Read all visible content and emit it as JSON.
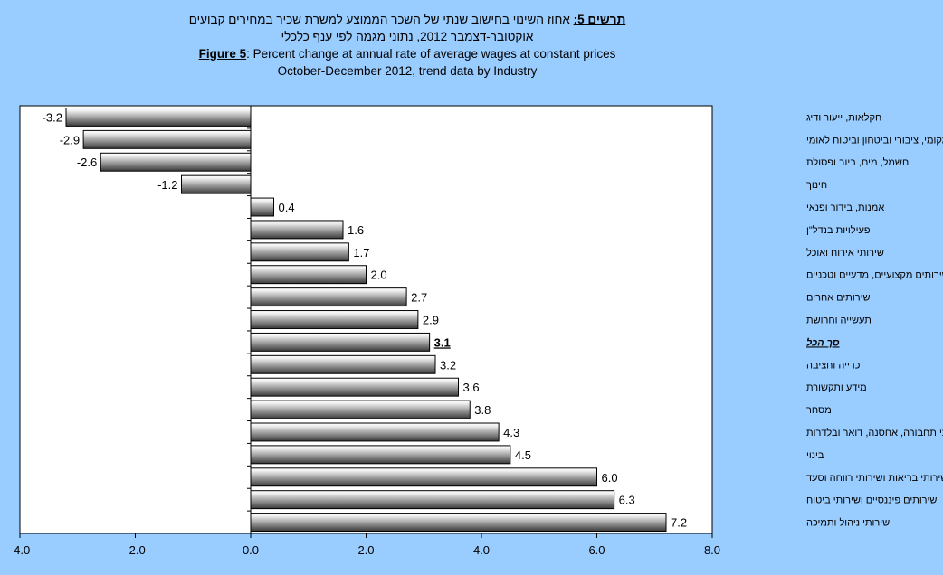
{
  "title": {
    "he_prefix": "תרשים 5:",
    "he_line1": " אחוז השינוי בחישוב שנתי של השכר הממוצע למשרת שכיר במחירים קבועים",
    "he_line2": "אוקטובר-דצמבר 2012, נתוני מגמה לפי ענף כלכלי",
    "en_prefix": "Figure 5",
    "en_line1": ": Percent change at annual rate of average wages at constant prices",
    "en_line2": "October-December 2012, trend data by Industry"
  },
  "chart_data": {
    "type": "bar",
    "orientation": "horizontal",
    "categories": [
      "חקלאות, ייעור ודיג",
      "מינהל מקומי, ציבורי וביטחון וביטוח לאומי",
      "חשמל, מים, ביוב ופסולת",
      "חינוך",
      "אמנות, בידור ופנאי",
      "פעילויות בנדל\"ן",
      "שירותי אירוח ואוכל",
      "שירותים מקצועיים, מדעיים וטכניים",
      "שירותים אחרים",
      "תעשייה וחרושת",
      "סך הכל",
      "כרייה וחציבה",
      "מידע ותקשורת",
      "מסחר",
      "שירותי תחבורה, אחסנה, דואר ובלדרות",
      "בינוי",
      "שירותי בריאות ושירותי רווחה וסעד",
      "שירותים פיננסיים ושירותי ביטוח",
      "שירותי ניהול ותמיכה"
    ],
    "values": [
      -3.2,
      -2.9,
      -2.6,
      -1.2,
      0.4,
      1.6,
      1.7,
      2.0,
      2.7,
      2.9,
      3.1,
      3.2,
      3.6,
      3.8,
      4.3,
      4.5,
      6.0,
      6.3,
      7.2
    ],
    "data_labels": [
      "-3.2",
      "-2.9",
      "-2.6",
      "-1.2",
      "0.4",
      "1.6",
      "1.7",
      "2.0",
      "2.7",
      "2.9",
      "3.1",
      "3.2",
      "3.6",
      "3.8",
      "4.3",
      "4.5",
      "6.0",
      "6.3",
      "7.2"
    ],
    "highlight_index": 10,
    "xlim": [
      -4,
      8
    ],
    "xticks": [
      -4,
      -2,
      0,
      2,
      4,
      6,
      8
    ],
    "xtick_labels": [
      "-4.0",
      "-2.0",
      "0.0",
      "2.0",
      "4.0",
      "6.0",
      "8.0"
    ],
    "grid": false,
    "legend": "none",
    "colors": {
      "background": "#99ccff",
      "plot_area": "#ffffff",
      "bar_light": "#ffffff",
      "bar_dark": "#3a3a3a",
      "border": "#000000"
    }
  }
}
